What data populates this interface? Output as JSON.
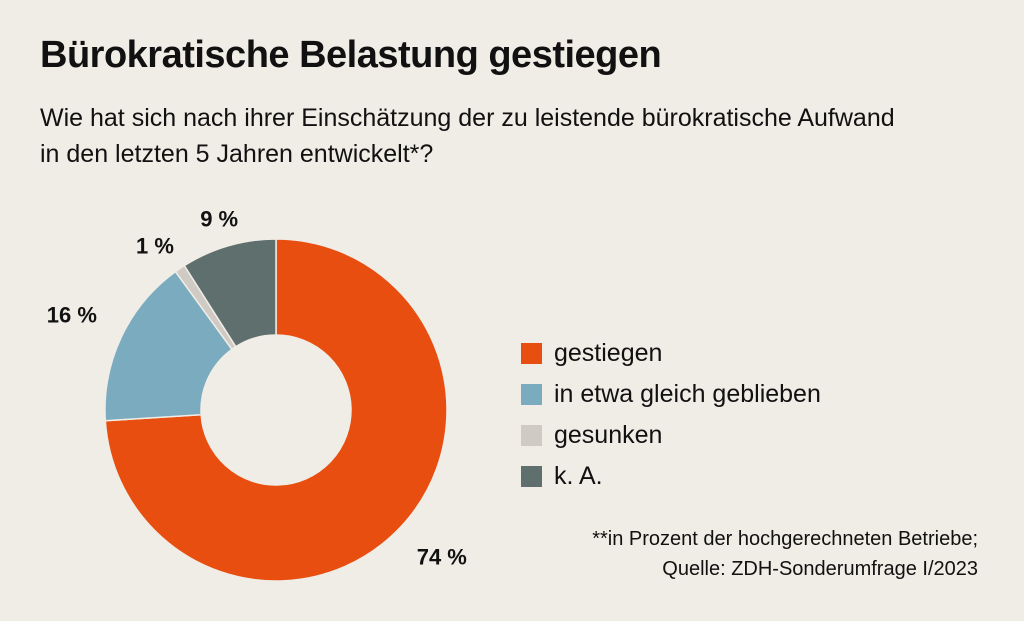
{
  "title": "Bürokratische Belastung gestiegen",
  "subtitle": "Wie hat sich nach ihrer Einschätzung der zu leistende bürokratische Aufwand in den letzten 5 Jahren entwickelt*?",
  "footnote": {
    "line1": "**in Prozent der hochgerechneten Betriebe;",
    "line2": "Quelle: ZDH-Sonderumfrage I/2023"
  },
  "chart_data": {
    "type": "pie",
    "variant": "donut",
    "legend_position": "right",
    "categories": [
      "gestiegen",
      "in etwa gleich geblieben",
      "gesunken",
      "k. A."
    ],
    "values": [
      74,
      16,
      1,
      9
    ],
    "labels": [
      "74 %",
      "16 %",
      "1 %",
      "9 %"
    ],
    "colors": [
      "#e84e0f",
      "#7aabbf",
      "#cfcbc4",
      "#5f6f6d"
    ]
  }
}
